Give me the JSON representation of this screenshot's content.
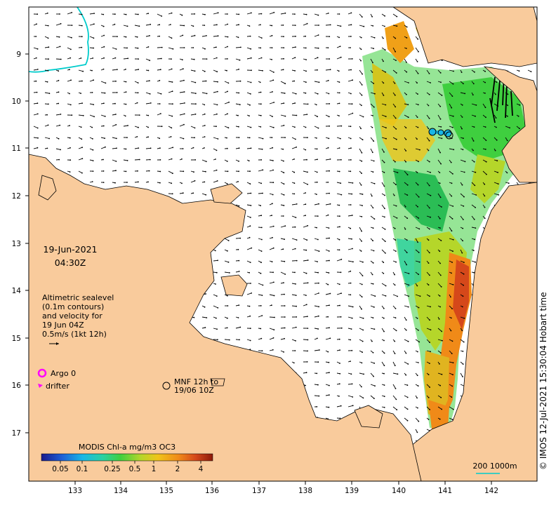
{
  "map": {
    "date": "19-Jun-2021",
    "time": "04:30Z",
    "x_ticks": [
      "133",
      "134",
      "135",
      "136",
      "137",
      "138",
      "139",
      "140",
      "141",
      "142"
    ],
    "y_ticks": [
      "9",
      "10",
      "11",
      "12",
      "13",
      "14",
      "15",
      "16",
      "17"
    ],
    "legend": {
      "line1": "Altimetric sealevel",
      "line2": "(0.1m contours)",
      "line3": "and velocity for",
      "line4": "19 Jun 04Z",
      "line5": "0.5m/s (1kt 12h)",
      "argo": "Argo 0",
      "drifter": "drifter",
      "mnf_line1": "MNF 12h to",
      "mnf_line2": "19/06 10Z"
    },
    "colorbar": {
      "title": "MODIS Chl-a mg/m3 OC3",
      "ticks": [
        "0.05",
        "0.1",
        "0.25",
        "0.5",
        "1",
        "2",
        "4"
      ]
    },
    "scale": "200  1000m",
    "credit": "© IMOS 12-Jul-2021 15:30:04 Hobart time",
    "colors": {
      "land": "#f9cb9c",
      "argo": "#ff00ff",
      "cyan_contour": "#00cccc",
      "colorbar": [
        "#1a1a8c",
        "#1e5fd6",
        "#19b7e6",
        "#2ad1a0",
        "#3fcf3f",
        "#b5d62a",
        "#f0c419",
        "#f08a18",
        "#d5481a",
        "#8c1a0a"
      ]
    }
  }
}
